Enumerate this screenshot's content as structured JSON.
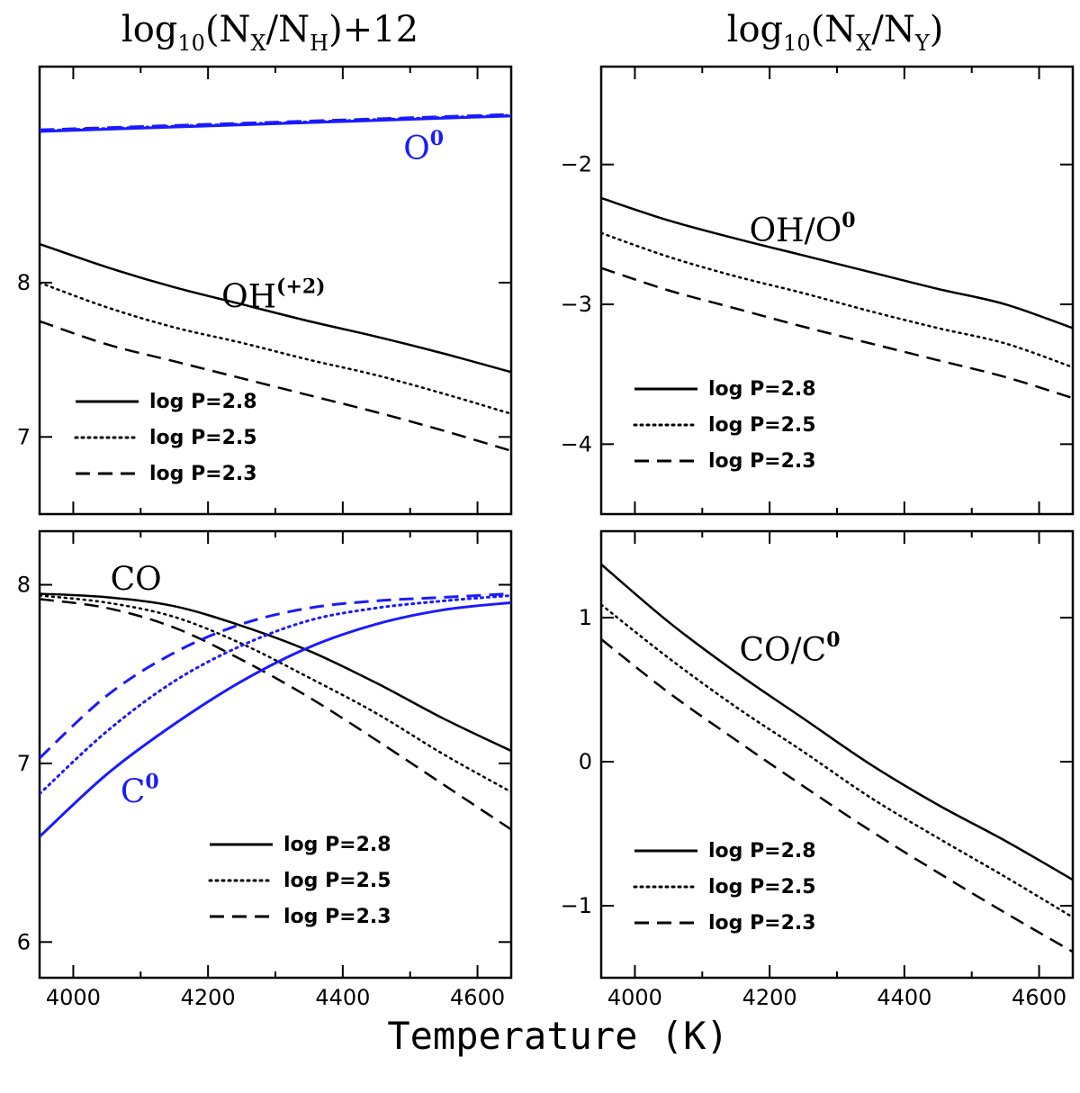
{
  "figure": {
    "left_title": {
      "a": "log",
      "b": "10",
      "c": "(N",
      "d": "X",
      "e": "/N",
      "f": "H",
      "g": ")+12"
    },
    "right_title": {
      "a": "log",
      "b": "10",
      "c": "(N",
      "d": "X",
      "e": "/N",
      "f": "Y",
      "g": ")"
    },
    "xlabel": "Temperature (K)"
  },
  "colors": {
    "black": "#000000",
    "blue": "#1a1aff"
  },
  "chart_data": [
    {
      "id": "tl",
      "type": "line",
      "xlim": [
        3950,
        4650
      ],
      "ylim": [
        6.5,
        9.4
      ],
      "xticks": [
        4000,
        4200,
        4400,
        4600
      ],
      "show_xtick_labels": false,
      "yticks": [
        7,
        8
      ],
      "ytick_labels": [
        "7",
        "8"
      ],
      "series": [
        {
          "name": "O0 log P=2.8",
          "color": "blue",
          "style": "solid",
          "width": 3,
          "x": [
            3950,
            4650
          ],
          "y": [
            8.98,
            9.08
          ]
        },
        {
          "name": "O0 log P=2.5",
          "color": "blue",
          "style": "dotted",
          "width": 3,
          "x": [
            3950,
            4650
          ],
          "y": [
            8.985,
            9.085
          ]
        },
        {
          "name": "O0 log P=2.3",
          "color": "blue",
          "style": "dashed",
          "width": 3,
          "x": [
            3950,
            4650
          ],
          "y": [
            8.99,
            9.09
          ]
        },
        {
          "name": "OH log P=2.8",
          "color": "black",
          "style": "solid",
          "width": 2.5,
          "x": [
            3950,
            4050,
            4150,
            4250,
            4350,
            4450,
            4550,
            4650
          ],
          "y": [
            8.25,
            8.1,
            7.97,
            7.86,
            7.75,
            7.65,
            7.54,
            7.42
          ]
        },
        {
          "name": "OH log P=2.5",
          "color": "black",
          "style": "dotted",
          "width": 2.5,
          "x": [
            3950,
            4050,
            4150,
            4250,
            4350,
            4450,
            4550,
            4650
          ],
          "y": [
            8.0,
            7.84,
            7.71,
            7.61,
            7.5,
            7.4,
            7.28,
            7.15
          ]
        },
        {
          "name": "OH log P=2.3",
          "color": "black",
          "style": "dashed",
          "width": 2.5,
          "x": [
            3950,
            4050,
            4150,
            4250,
            4350,
            4450,
            4550,
            4650
          ],
          "y": [
            7.75,
            7.6,
            7.49,
            7.38,
            7.27,
            7.16,
            7.04,
            6.91
          ]
        }
      ],
      "legend": {
        "placement": "bottom-left",
        "entries": [
          {
            "label": "log P=2.8",
            "style": "solid"
          },
          {
            "label": "log P=2.5",
            "style": "dotted"
          },
          {
            "label": "log P=2.3",
            "style": "dashed"
          }
        ]
      },
      "annotations": [
        {
          "text": "O",
          "sup": "0",
          "color": "blue",
          "x": 4490,
          "y": 8.8
        },
        {
          "text": "OH",
          "sup": "(+2)",
          "color": "black",
          "x": 4220,
          "y": 7.84
        }
      ]
    },
    {
      "id": "tr",
      "type": "line",
      "xlim": [
        3950,
        4650
      ],
      "ylim": [
        -4.5,
        -1.3
      ],
      "xticks": [
        4000,
        4200,
        4400,
        4600
      ],
      "show_xtick_labels": false,
      "yticks": [
        -4,
        -3,
        -2
      ],
      "ytick_labels": [
        "−4",
        "−3",
        "−2"
      ],
      "series": [
        {
          "name": "OH/O0 log P=2.8",
          "color": "black",
          "style": "solid",
          "width": 2.5,
          "x": [
            3950,
            4050,
            4150,
            4250,
            4350,
            4450,
            4550,
            4650
          ],
          "y": [
            -2.24,
            -2.4,
            -2.53,
            -2.65,
            -2.77,
            -2.89,
            -3.0,
            -3.17
          ]
        },
        {
          "name": "OH/O0 log P=2.5",
          "color": "black",
          "style": "dotted",
          "width": 2.5,
          "x": [
            3950,
            4050,
            4150,
            4250,
            4350,
            4450,
            4550,
            4650
          ],
          "y": [
            -2.49,
            -2.66,
            -2.8,
            -2.92,
            -3.05,
            -3.17,
            -3.28,
            -3.45
          ]
        },
        {
          "name": "OH/O0 log P=2.3",
          "color": "black",
          "style": "dashed",
          "width": 2.5,
          "x": [
            3950,
            4050,
            4150,
            4250,
            4350,
            4450,
            4550,
            4650
          ],
          "y": [
            -2.74,
            -2.9,
            -3.03,
            -3.16,
            -3.28,
            -3.4,
            -3.52,
            -3.67
          ]
        }
      ],
      "legend": {
        "placement": "bottom-left",
        "entries": [
          {
            "label": "log P=2.8",
            "style": "solid"
          },
          {
            "label": "log P=2.5",
            "style": "dotted"
          },
          {
            "label": "log P=2.3",
            "style": "dashed"
          }
        ]
      },
      "annotations": [
        {
          "text": "OH/O",
          "sup": "0",
          "color": "black",
          "x": 4170,
          "y": -2.55
        }
      ]
    },
    {
      "id": "bl",
      "type": "line",
      "xlim": [
        3950,
        4650
      ],
      "ylim": [
        5.8,
        8.3
      ],
      "xticks": [
        4000,
        4200,
        4400,
        4600
      ],
      "show_xtick_labels": true,
      "xtick_labels": [
        "4000",
        "4200",
        "4400",
        "4600"
      ],
      "yticks": [
        6,
        7,
        8
      ],
      "ytick_labels": [
        "6",
        "7",
        "8"
      ],
      "series": [
        {
          "name": "CO log P=2.8",
          "color": "black",
          "style": "solid",
          "width": 2.5,
          "x": [
            3950,
            4050,
            4150,
            4250,
            4350,
            4450,
            4550,
            4650
          ],
          "y": [
            7.95,
            7.93,
            7.88,
            7.77,
            7.63,
            7.45,
            7.25,
            7.07
          ]
        },
        {
          "name": "CO log P=2.5",
          "color": "black",
          "style": "dotted",
          "width": 2.5,
          "x": [
            3950,
            4050,
            4150,
            4250,
            4350,
            4450,
            4550,
            4650
          ],
          "y": [
            7.94,
            7.9,
            7.82,
            7.67,
            7.48,
            7.28,
            7.05,
            6.84
          ]
        },
        {
          "name": "CO log P=2.3",
          "color": "black",
          "style": "dashed",
          "width": 2.5,
          "x": [
            3950,
            4050,
            4150,
            4250,
            4350,
            4450,
            4550,
            4650
          ],
          "y": [
            7.92,
            7.87,
            7.76,
            7.58,
            7.37,
            7.13,
            6.88,
            6.63
          ]
        },
        {
          "name": "C0 log P=2.8",
          "color": "blue",
          "style": "solid",
          "width": 3,
          "x": [
            3950,
            4050,
            4150,
            4250,
            4350,
            4450,
            4550,
            4650
          ],
          "y": [
            6.59,
            6.94,
            7.22,
            7.46,
            7.65,
            7.78,
            7.86,
            7.9
          ]
        },
        {
          "name": "C0 log P=2.5",
          "color": "blue",
          "style": "dotted",
          "width": 3,
          "x": [
            3950,
            4050,
            4150,
            4250,
            4350,
            4450,
            4550,
            4650
          ],
          "y": [
            6.83,
            7.18,
            7.46,
            7.66,
            7.8,
            7.87,
            7.91,
            7.94
          ]
        },
        {
          "name": "C0 log P=2.3",
          "color": "blue",
          "style": "dashed",
          "width": 3,
          "x": [
            3950,
            4050,
            4150,
            4250,
            4350,
            4450,
            4550,
            4650
          ],
          "y": [
            7.03,
            7.38,
            7.62,
            7.78,
            7.87,
            7.91,
            7.93,
            7.95
          ]
        }
      ],
      "legend": {
        "placement": "bottom-right",
        "entries": [
          {
            "label": "log P=2.8",
            "style": "solid"
          },
          {
            "label": "log P=2.5",
            "style": "dotted"
          },
          {
            "label": "log P=2.3",
            "style": "dashed"
          }
        ]
      },
      "annotations": [
        {
          "text": "CO",
          "sup": "",
          "color": "black",
          "x": 4055,
          "y": 7.97
        },
        {
          "text": "C",
          "sup": "0",
          "color": "blue",
          "x": 4070,
          "y": 6.78
        }
      ]
    },
    {
      "id": "br",
      "type": "line",
      "xlim": [
        3950,
        4650
      ],
      "ylim": [
        -1.5,
        1.6
      ],
      "xticks": [
        4000,
        4200,
        4400,
        4600
      ],
      "show_xtick_labels": true,
      "xtick_labels": [
        "4000",
        "4200",
        "4400",
        "4600"
      ],
      "yticks": [
        -1,
        0,
        1
      ],
      "ytick_labels": [
        "−1",
        "0",
        "1"
      ],
      "series": [
        {
          "name": "CO/C0 log P=2.8",
          "color": "black",
          "style": "solid",
          "width": 2.5,
          "x": [
            3950,
            4050,
            4150,
            4250,
            4350,
            4450,
            4550,
            4650
          ],
          "y": [
            1.37,
            0.97,
            0.62,
            0.3,
            -0.02,
            -0.3,
            -0.55,
            -0.82
          ]
        },
        {
          "name": "CO/C0 log P=2.5",
          "color": "black",
          "style": "dotted",
          "width": 2.5,
          "x": [
            3950,
            4050,
            4150,
            4250,
            4350,
            4450,
            4550,
            4650
          ],
          "y": [
            1.09,
            0.72,
            0.38,
            0.07,
            -0.25,
            -0.53,
            -0.8,
            -1.08
          ]
        },
        {
          "name": "CO/C0 log P=2.3",
          "color": "black",
          "style": "dashed",
          "width": 2.5,
          "x": [
            3950,
            4050,
            4150,
            4250,
            4350,
            4450,
            4550,
            4650
          ],
          "y": [
            0.85,
            0.48,
            0.15,
            -0.17,
            -0.48,
            -0.77,
            -1.05,
            -1.32
          ]
        }
      ],
      "legend": {
        "placement": "bottom-left",
        "entries": [
          {
            "label": "log P=2.8",
            "style": "solid"
          },
          {
            "label": "log P=2.5",
            "style": "dotted"
          },
          {
            "label": "log P=2.3",
            "style": "dashed"
          }
        ]
      },
      "annotations": [
        {
          "text": "CO/C",
          "sup": "0",
          "color": "black",
          "x": 4155,
          "y": 0.7
        }
      ]
    }
  ]
}
